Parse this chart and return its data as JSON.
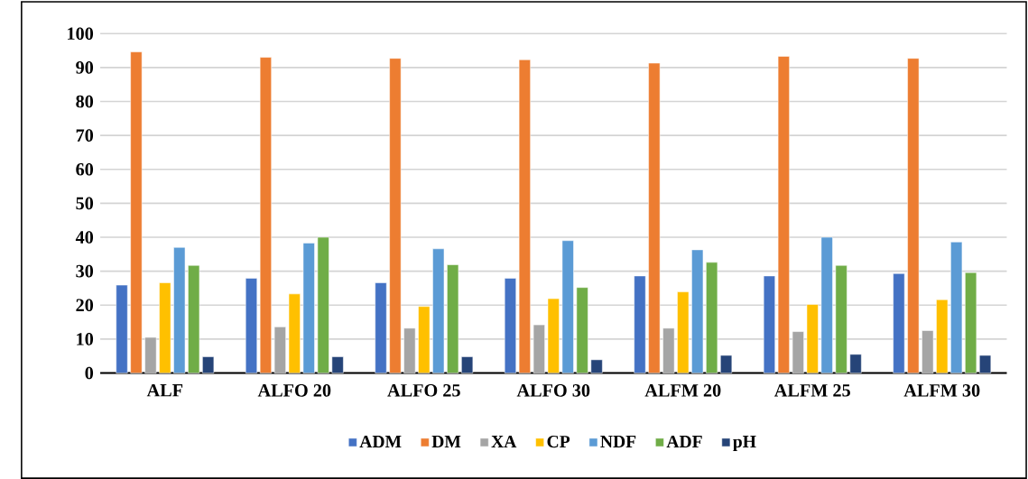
{
  "chart_data": {
    "type": "bar",
    "categories": [
      "ALF",
      "ALFO 20",
      "ALFO 25",
      "ALFO 30",
      "ALFM 20",
      "ALFM 25",
      "ALFM 30"
    ],
    "series": [
      {
        "name": "ADM",
        "color": "#4472c4",
        "values": [
          25.9,
          27.9,
          26.6,
          27.9,
          28.6,
          28.6,
          29.3
        ]
      },
      {
        "name": "DM",
        "color": "#ed7d31",
        "values": [
          94.6,
          93.0,
          92.7,
          92.3,
          91.3,
          93.3,
          92.7
        ]
      },
      {
        "name": "XA",
        "color": "#a5a5a5",
        "values": [
          10.5,
          13.6,
          13.2,
          14.2,
          13.2,
          12.2,
          12.5
        ]
      },
      {
        "name": "CP",
        "color": "#ffc000",
        "values": [
          26.6,
          23.3,
          19.6,
          21.9,
          23.9,
          20.2,
          21.6
        ]
      },
      {
        "name": "NDF",
        "color": "#5b9bd5",
        "values": [
          37.0,
          38.3,
          36.6,
          39.0,
          36.3,
          40.0,
          38.6
        ]
      },
      {
        "name": "ADF",
        "color": "#70ad47",
        "values": [
          31.7,
          40.0,
          31.9,
          25.2,
          32.6,
          31.7,
          29.6
        ]
      },
      {
        "name": "pH",
        "color": "#264478",
        "values": [
          4.8,
          4.8,
          4.8,
          3.9,
          5.2,
          5.5,
          5.2
        ]
      }
    ],
    "ylim": [
      0,
      100
    ],
    "yticks": [
      0,
      10,
      20,
      30,
      40,
      50,
      60,
      70,
      80,
      90,
      100
    ],
    "grid": "y",
    "legend": "bottom"
  }
}
